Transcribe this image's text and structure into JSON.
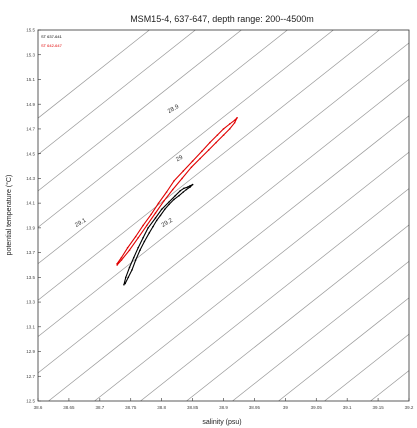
{
  "chart_data": {
    "type": "line",
    "title": "MSM15-4, 637-647, depth range: 200--4500m",
    "xlabel": "salinity (psu)",
    "ylabel": "potential temperature (°C)",
    "xlim": [
      38.6,
      39.2
    ],
    "ylim": [
      12.5,
      15.5
    ],
    "x_ticks": [
      "38.6",
      "38.65",
      "38.7",
      "38.75",
      "38.8",
      "38.85",
      "38.9",
      "38.95",
      "39",
      "39.05",
      "39.1",
      "39.15",
      "39.2"
    ],
    "y_ticks": [
      "12.5",
      "12.7",
      "12.9",
      "13.1",
      "13.3",
      "13.5",
      "13.7",
      "13.9",
      "14.1",
      "14.3",
      "14.5",
      "14.7",
      "14.9",
      "15.1",
      "15.3",
      "15.5"
    ],
    "grid": false,
    "legend_position": "top-left",
    "isopycnals": [
      {
        "label": "28.9",
        "x": 38.82,
        "y": 14.85
      },
      {
        "label": "29",
        "x": 38.83,
        "y": 14.45
      },
      {
        "label": "29.1",
        "x": 38.67,
        "y": 13.93
      },
      {
        "label": "29.2",
        "x": 38.81,
        "y": 13.93
      }
    ],
    "series": [
      {
        "name": "ST 637-641",
        "color": "#000000",
        "x": [
          38.739,
          38.742,
          38.748,
          38.755,
          38.762,
          38.77,
          38.778,
          38.79,
          38.8,
          38.812,
          38.822,
          38.83,
          38.836,
          38.842,
          38.846,
          38.85,
          38.846,
          38.84,
          38.835,
          38.828,
          38.82,
          38.812,
          38.805,
          38.798,
          38.792,
          38.786,
          38.78,
          38.772,
          38.765,
          38.758,
          38.752,
          38.746,
          38.741
        ],
        "y": [
          13.44,
          13.5,
          13.58,
          13.66,
          13.74,
          13.82,
          13.9,
          13.98,
          14.05,
          14.11,
          14.16,
          14.2,
          14.22,
          14.23,
          14.24,
          14.25,
          14.23,
          14.21,
          14.19,
          14.16,
          14.13,
          14.09,
          14.05,
          14.0,
          13.96,
          13.91,
          13.86,
          13.79,
          13.72,
          13.64,
          13.56,
          13.5,
          13.45
        ]
      },
      {
        "name": "ST 642-647",
        "color": "#e00000",
        "x": [
          38.728,
          38.735,
          38.745,
          38.758,
          38.77,
          38.783,
          38.795,
          38.808,
          38.82,
          38.835,
          38.85,
          38.865,
          38.878,
          38.89,
          38.9,
          38.91,
          38.918,
          38.922,
          38.918,
          38.91,
          38.9,
          38.888,
          38.876,
          38.862,
          38.848,
          38.833,
          38.818,
          38.804,
          38.79,
          38.776,
          38.762,
          38.748,
          38.735,
          38.728
        ],
        "y": [
          13.61,
          13.66,
          13.74,
          13.83,
          13.92,
          14.01,
          14.1,
          14.19,
          14.28,
          14.36,
          14.44,
          14.52,
          14.59,
          14.65,
          14.7,
          14.74,
          14.77,
          14.79,
          14.75,
          14.7,
          14.65,
          14.59,
          14.53,
          14.46,
          14.39,
          14.3,
          14.21,
          14.12,
          14.02,
          13.92,
          13.82,
          13.72,
          13.64,
          13.6
        ]
      }
    ]
  }
}
